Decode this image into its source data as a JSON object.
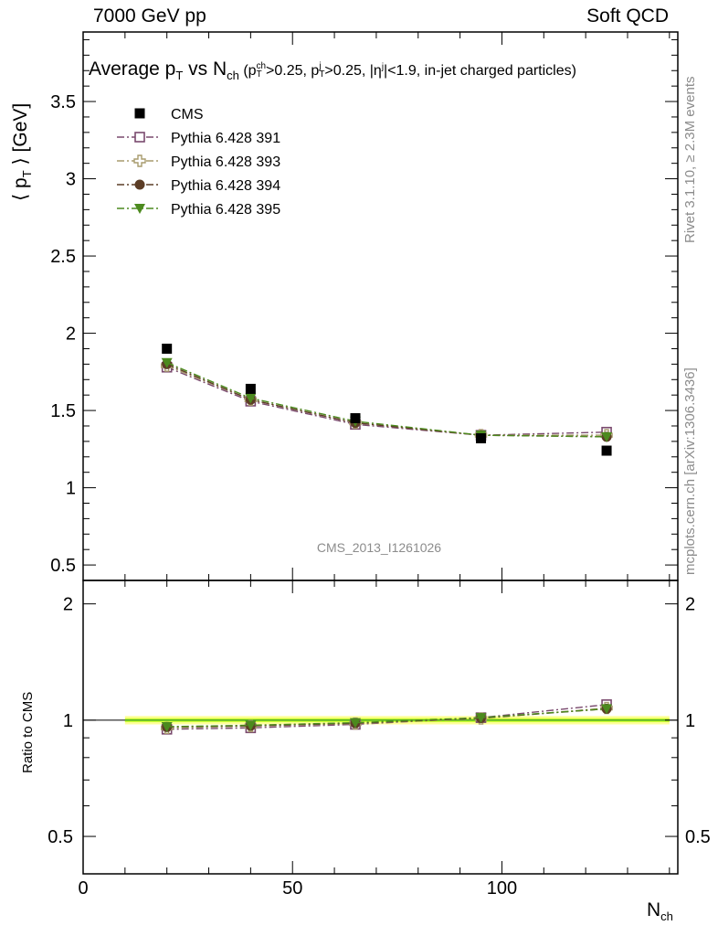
{
  "header": {
    "energy_label": "7000 GeV pp",
    "process_label": "Soft QCD"
  },
  "side_labels": {
    "rivet": "Rivet 3.1.10, ≥ 2.3M events",
    "mcplots": "mcplots.cern.ch [arXiv:1306.3436]"
  },
  "chart_data": {
    "type": "scatter",
    "title": {
      "main": "Average p",
      "main_sub": "T",
      "mid": " vs N",
      "mid_sub": "ch",
      "open": " (p",
      "pch_sup": "ch",
      "pch_sub": "T",
      "pch_rest": ">0.25, p",
      "pj_sup": "j",
      "pj_sub": "T",
      "pj_rest": ">0.25, |η",
      "eta_sup": "j",
      "eta_rest": "|<1.9, in-jet charged particles)"
    },
    "analysis_id": "CMS_2013_I1261026",
    "ylabel_main": {
      "open": "⟨ p",
      "sub": "T",
      "close": " ⟩ [GeV]"
    },
    "ylabel_ratio": "Ratio to CMS",
    "xlabel": {
      "main": "N",
      "sub": "ch"
    },
    "xlim": [
      0,
      142
    ],
    "ylim_main": [
      0.4,
      3.95
    ],
    "ylim_ratio": [
      0.4,
      2.3
    ],
    "xticks": [
      0,
      50,
      100
    ],
    "yticks_main": [
      0.5,
      1,
      1.5,
      2,
      2.5,
      3,
      3.5
    ],
    "yticks_ratio": [
      0.5,
      1,
      2
    ],
    "x": [
      20,
      40,
      65,
      95,
      125
    ],
    "data_band": {
      "xmin": 10,
      "xmax": 140
    },
    "series": [
      {
        "name": "CMS",
        "marker": "square-filled",
        "color": "#000000",
        "values": [
          1.9,
          1.64,
          1.45,
          1.32,
          1.24
        ],
        "ratio": [
          1.0,
          1.0,
          1.0,
          1.0,
          1.0
        ]
      },
      {
        "name": "Pythia 6.428 391",
        "marker": "square-open",
        "color": "#7a4a6e",
        "values": [
          1.78,
          1.56,
          1.41,
          1.34,
          1.36
        ],
        "ratio": [
          0.947,
          0.955,
          0.975,
          1.015,
          1.097
        ]
      },
      {
        "name": "Pythia 6.428 393",
        "marker": "cross-open",
        "color": "#a89c6e",
        "values": [
          1.79,
          1.57,
          1.42,
          1.34,
          1.34
        ],
        "ratio": [
          0.955,
          0.965,
          0.98,
          1.01,
          1.075
        ]
      },
      {
        "name": "Pythia 6.428 394",
        "marker": "circle-filled",
        "color": "#5c3d26",
        "values": [
          1.8,
          1.57,
          1.42,
          1.34,
          1.33
        ],
        "ratio": [
          0.96,
          0.967,
          0.982,
          1.012,
          1.07
        ]
      },
      {
        "name": "Pythia 6.428 395",
        "marker": "triangle-down-filled",
        "color": "#4c8a1e",
        "values": [
          1.81,
          1.58,
          1.43,
          1.34,
          1.33
        ],
        "ratio": [
          0.962,
          0.97,
          0.985,
          1.015,
          1.07
        ]
      }
    ],
    "band_colors": {
      "inner": "#ccff33",
      "outer": "#ffff99",
      "line": "#4caf24"
    },
    "grid": false,
    "legend_position": "top-left"
  }
}
